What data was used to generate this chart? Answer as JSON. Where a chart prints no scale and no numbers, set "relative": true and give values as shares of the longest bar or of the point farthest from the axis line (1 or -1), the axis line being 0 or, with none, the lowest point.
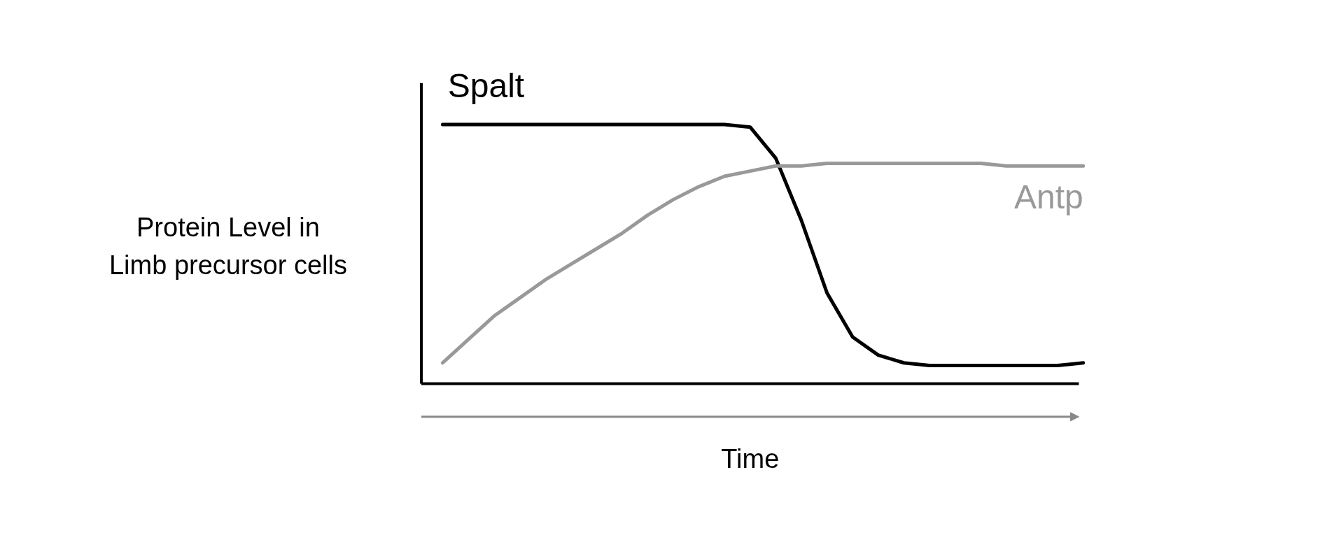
{
  "chart_data": {
    "type": "line",
    "relative": true,
    "xlabel": "Time",
    "ylabel": "Protein Level in\nLimb precursor cells",
    "categories": [
      null,
      null,
      null,
      null,
      null,
      null,
      null,
      null,
      null,
      null,
      null,
      null,
      null,
      null,
      null,
      null,
      null,
      null,
      null,
      null,
      null,
      null,
      null,
      null,
      null,
      null
    ],
    "series": [
      {
        "name": "Spalt",
        "color": "#000000",
        "values": [
          1.0,
          1.0,
          1.0,
          1.0,
          1.0,
          1.0,
          1.0,
          1.0,
          1.0,
          1.0,
          1.0,
          1.0,
          0.99,
          0.87,
          0.63,
          0.35,
          0.18,
          0.11,
          0.08,
          0.07,
          0.07,
          0.07,
          0.07,
          0.07,
          0.07,
          0.08
        ]
      },
      {
        "name": "Antp",
        "color": "#999999",
        "values": [
          0.08,
          0.17,
          0.26,
          0.33,
          0.4,
          0.46,
          0.52,
          0.58,
          0.65,
          0.71,
          0.76,
          0.8,
          0.82,
          0.84,
          0.84,
          0.85,
          0.85,
          0.85,
          0.85,
          0.85,
          0.85,
          0.85,
          0.84,
          0.84,
          0.84,
          0.84
        ]
      }
    ],
    "grid": false
  }
}
